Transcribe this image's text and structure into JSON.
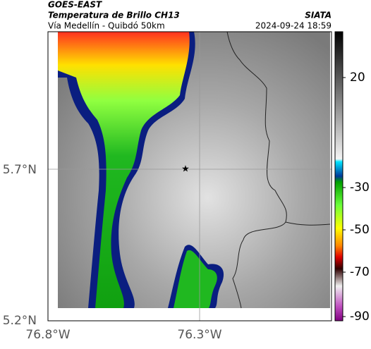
{
  "header": {
    "source": "GOES-EAST",
    "title": "Temperatura de Brillo CH13",
    "agency": "SIATA",
    "subtitle": "Vía Medellín - Quibdó 50km",
    "datetime": "2024-09-24 18:59"
  },
  "map": {
    "lat_labels": [
      "5.7°N",
      "5.2°N"
    ],
    "lon_labels": [
      "76.8°W",
      "76.3°W"
    ]
  },
  "colorbar": {
    "labels": [
      "20",
      "-30",
      "-50",
      "-70",
      "-90"
    ]
  }
}
